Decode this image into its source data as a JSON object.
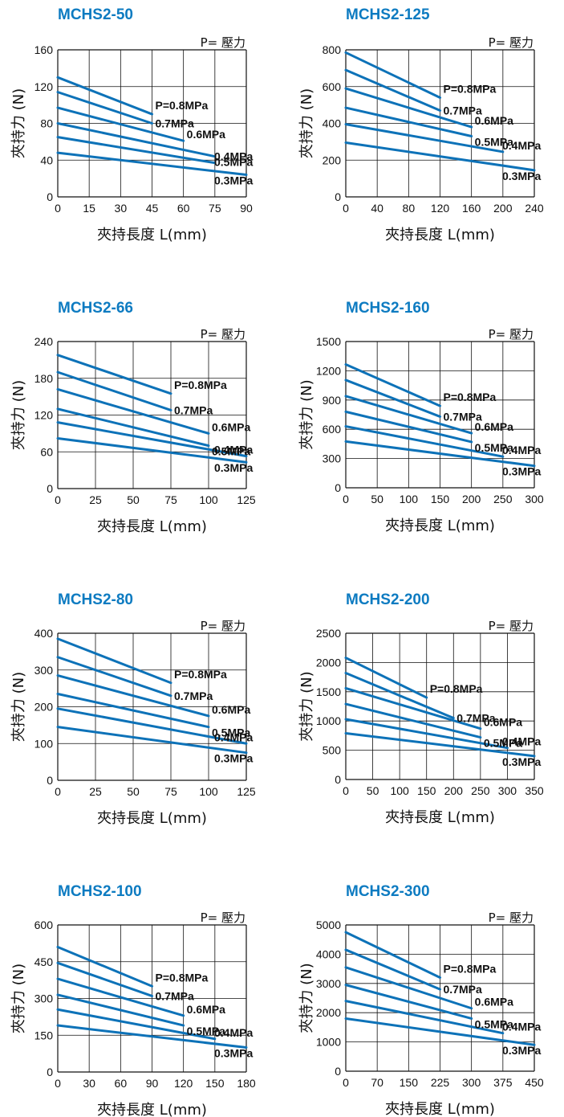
{
  "common": {
    "pressure_legend": "P= 壓力",
    "xlabel": "夾持長度 L(mm)",
    "ylabel": "夾持力 (N)",
    "series_color": "#0d72b8"
  },
  "chart_data": [
    {
      "type": "line",
      "title": "MCHS2-50",
      "xlim": [
        0,
        90
      ],
      "ylim": [
        0,
        160
      ],
      "xticks": [
        "0",
        "15",
        "30",
        "45",
        "60",
        "75",
        "90"
      ],
      "yticks": [
        "0",
        "40",
        "80",
        "120",
        "160"
      ],
      "series": [
        {
          "name": "P=0.8MPa",
          "x": [
            0,
            45
          ],
          "y": [
            130,
            90
          ]
        },
        {
          "name": "0.7MPa",
          "x": [
            0,
            45
          ],
          "y": [
            114,
            80
          ]
        },
        {
          "name": "0.6MPa",
          "x": [
            0,
            60
          ],
          "y": [
            97,
            61
          ]
        },
        {
          "name": "0.5MPa",
          "x": [
            0,
            75
          ],
          "y": [
            80,
            44
          ]
        },
        {
          "name": "0.4MPa",
          "x": [
            0,
            75
          ],
          "y": [
            65,
            37
          ]
        },
        {
          "name": "0.3MPa",
          "x": [
            0,
            90
          ],
          "y": [
            48,
            24
          ]
        }
      ],
      "labels": [
        "P=0.8MPa",
        "0.7MPa",
        "0.6MPa",
        "0.5MPa",
        "0.4MPa",
        "0.3MPa"
      ]
    },
    {
      "type": "line",
      "title": "MCHS2-125",
      "xlim": [
        0,
        240
      ],
      "ylim": [
        0,
        800
      ],
      "xticks": [
        "0",
        "40",
        "80",
        "120",
        "160",
        "200",
        "240"
      ],
      "yticks": [
        "0",
        "200",
        "400",
        "600",
        "800"
      ],
      "series": [
        {
          "name": "P=0.8MPa",
          "x": [
            0,
            120
          ],
          "y": [
            785,
            540
          ]
        },
        {
          "name": "0.7MPa",
          "x": [
            0,
            120
          ],
          "y": [
            690,
            470
          ]
        },
        {
          "name": "0.6MPa",
          "x": [
            0,
            160
          ],
          "y": [
            590,
            380
          ]
        },
        {
          "name": "0.5MPa",
          "x": [
            0,
            160
          ],
          "y": [
            485,
            330
          ]
        },
        {
          "name": "0.4MPa",
          "x": [
            0,
            200
          ],
          "y": [
            395,
            245
          ]
        },
        {
          "name": "0.3MPa",
          "x": [
            0,
            240
          ],
          "y": [
            295,
            145
          ]
        }
      ],
      "labels": [
        "P=0.8MPa",
        "0.7MPa",
        "0.6MPa",
        "0.5MPa",
        "0.4MPa",
        "0.3MPa"
      ]
    },
    {
      "type": "line",
      "title": "MCHS2-66",
      "xlim": [
        0,
        125
      ],
      "ylim": [
        0,
        240
      ],
      "xticks": [
        "0",
        "25",
        "50",
        "75",
        "100",
        "125"
      ],
      "yticks": [
        "0",
        "60",
        "120",
        "180",
        "240"
      ],
      "series": [
        {
          "name": "P=0.8MPa",
          "x": [
            0,
            75
          ],
          "y": [
            218,
            155
          ]
        },
        {
          "name": "0.7MPa",
          "x": [
            0,
            75
          ],
          "y": [
            190,
            128
          ]
        },
        {
          "name": "0.6MPa",
          "x": [
            0,
            100
          ],
          "y": [
            162,
            90
          ]
        },
        {
          "name": "0.5MPa",
          "x": [
            0,
            100
          ],
          "y": [
            130,
            70
          ]
        },
        {
          "name": "0.4MPa",
          "x": [
            0,
            125
          ],
          "y": [
            108,
            53
          ]
        },
        {
          "name": "0.3MPa",
          "x": [
            0,
            125
          ],
          "y": [
            82,
            43
          ]
        }
      ],
      "labels": [
        "P=0.8MPa",
        "0.7MPa",
        "0.6MPa",
        "0.5MPa",
        "0.4MPa",
        "0.3MPa"
      ]
    },
    {
      "type": "line",
      "title": "MCHS2-160",
      "xlim": [
        0,
        300
      ],
      "ylim": [
        0,
        1500
      ],
      "xticks": [
        "0",
        "50",
        "100",
        "150",
        "200",
        "250",
        "300"
      ],
      "yticks": [
        "0",
        "300",
        "600",
        "900",
        "1200",
        "1500"
      ],
      "series": [
        {
          "name": "P=0.8MPa",
          "x": [
            0,
            150
          ],
          "y": [
            1265,
            840
          ]
        },
        {
          "name": "0.7MPa",
          "x": [
            0,
            150
          ],
          "y": [
            1105,
            730
          ]
        },
        {
          "name": "0.6MPa",
          "x": [
            0,
            200
          ],
          "y": [
            940,
            560
          ]
        },
        {
          "name": "0.5MPa",
          "x": [
            0,
            200
          ],
          "y": [
            780,
            470
          ]
        },
        {
          "name": "0.4MPa",
          "x": [
            0,
            250
          ],
          "y": [
            630,
            320
          ]
        },
        {
          "name": "0.3MPa",
          "x": [
            0,
            300
          ],
          "y": [
            475,
            225
          ]
        }
      ],
      "labels": [
        "P=0.8MPa",
        "0.7MPa",
        "0.6MPa",
        "0.5MPa",
        "0.4MPa",
        "0.3MPa"
      ]
    },
    {
      "type": "line",
      "title": "MCHS2-80",
      "xlim": [
        0,
        125
      ],
      "ylim": [
        0,
        400
      ],
      "xticks": [
        "0",
        "25",
        "50",
        "75",
        "100",
        "125"
      ],
      "yticks": [
        "0",
        "100",
        "200",
        "300",
        "400"
      ],
      "series": [
        {
          "name": "P=0.8MPa",
          "x": [
            0,
            75
          ],
          "y": [
            385,
            265
          ]
        },
        {
          "name": "0.7MPa",
          "x": [
            0,
            75
          ],
          "y": [
            335,
            230
          ]
        },
        {
          "name": "0.6MPa",
          "x": [
            0,
            100
          ],
          "y": [
            285,
            175
          ]
        },
        {
          "name": "0.5MPa",
          "x": [
            0,
            100
          ],
          "y": [
            235,
            145
          ]
        },
        {
          "name": "0.4MPa",
          "x": [
            0,
            125
          ],
          "y": [
            195,
            100
          ]
        },
        {
          "name": "0.3MPa",
          "x": [
            0,
            125
          ],
          "y": [
            145,
            75
          ]
        }
      ],
      "labels": [
        "P=0.8MPa",
        "0.7MPa",
        "0.6MPa",
        "0.5MPa",
        "0.4MPa",
        "0.3MPa"
      ]
    },
    {
      "type": "line",
      "title": "MCHS2-200",
      "xlim": [
        0,
        350
      ],
      "ylim": [
        0,
        2500
      ],
      "xticks": [
        "0",
        "50",
        "100",
        "150",
        "200",
        "250",
        "300",
        "350"
      ],
      "yticks": [
        "0",
        "500",
        "1000",
        "1500",
        "2000",
        "2500"
      ],
      "series": [
        {
          "name": "P=0.8MPa",
          "x": [
            0,
            150
          ],
          "y": [
            2080,
            1400
          ]
        },
        {
          "name": "0.7MPa",
          "x": [
            0,
            200
          ],
          "y": [
            1820,
            1050
          ]
        },
        {
          "name": "0.6MPa",
          "x": [
            0,
            250
          ],
          "y": [
            1560,
            870
          ]
        },
        {
          "name": "0.5MPa",
          "x": [
            0,
            250
          ],
          "y": [
            1290,
            720
          ]
        },
        {
          "name": "0.4MPa",
          "x": [
            0,
            300
          ],
          "y": [
            1030,
            540
          ]
        },
        {
          "name": "0.3MPa",
          "x": [
            0,
            350
          ],
          "y": [
            790,
            400
          ]
        }
      ],
      "labels": [
        "P=0.8MPa",
        "0.7MPa",
        "0.6MPa",
        "0.5MPa",
        "0.4MPa",
        "0.3MPa"
      ]
    },
    {
      "type": "line",
      "title": "MCHS2-100",
      "xlim": [
        0,
        180
      ],
      "ylim": [
        0,
        600
      ],
      "xticks": [
        "0",
        "30",
        "60",
        "90",
        "120",
        "150",
        "180"
      ],
      "yticks": [
        "0",
        "150",
        "300",
        "450",
        "600"
      ],
      "series": [
        {
          "name": "P=0.8MPa",
          "x": [
            0,
            90
          ],
          "y": [
            510,
            350
          ]
        },
        {
          "name": "0.7MPa",
          "x": [
            0,
            90
          ],
          "y": [
            445,
            310
          ]
        },
        {
          "name": "0.6MPa",
          "x": [
            0,
            120
          ],
          "y": [
            380,
            230
          ]
        },
        {
          "name": "0.5MPa",
          "x": [
            0,
            120
          ],
          "y": [
            315,
            190
          ]
        },
        {
          "name": "0.4MPa",
          "x": [
            0,
            150
          ],
          "y": [
            255,
            135
          ]
        },
        {
          "name": "0.3MPa",
          "x": [
            0,
            180
          ],
          "y": [
            190,
            100
          ]
        }
      ],
      "labels": [
        "P=0.8MPa",
        "0.7MPa",
        "0.6MPa",
        "0.5MPa",
        "0.4MPa",
        "0.3MPa"
      ]
    },
    {
      "type": "line",
      "title": "MCHS2-300",
      "xlim": [
        0,
        450
      ],
      "ylim": [
        0,
        5000
      ],
      "xticks": [
        "0",
        "70",
        "150",
        "225",
        "300",
        "375",
        "450"
      ],
      "yticks": [
        "0",
        "1000",
        "2000",
        "3000",
        "4000",
        "5000"
      ],
      "series": [
        {
          "name": "P=0.8MPa",
          "x": [
            0,
            225
          ],
          "y": [
            4750,
            3200
          ]
        },
        {
          "name": "0.7MPa",
          "x": [
            0,
            225
          ],
          "y": [
            4150,
            2800
          ]
        },
        {
          "name": "0.6MPa",
          "x": [
            0,
            300
          ],
          "y": [
            3550,
            2150
          ]
        },
        {
          "name": "0.5MPa",
          "x": [
            0,
            300
          ],
          "y": [
            2950,
            1800
          ]
        },
        {
          "name": "0.4MPa",
          "x": [
            0,
            375
          ],
          "y": [
            2400,
            1300
          ]
        },
        {
          "name": "0.3MPa",
          "x": [
            0,
            450
          ],
          "y": [
            1800,
            900
          ]
        }
      ],
      "labels": [
        "P=0.8MPa",
        "0.7MPa",
        "0.6MPa",
        "0.5MPa",
        "0.4MPa",
        "0.3MPa"
      ]
    }
  ]
}
